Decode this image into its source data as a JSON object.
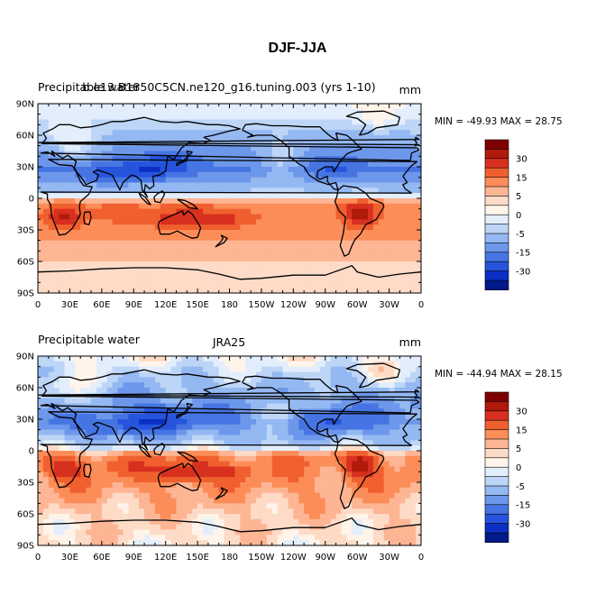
{
  "figure_title": "DJF-JJA",
  "panels": [
    {
      "left_label": "Precipitable water",
      "center_label": "b.e13.B1850C5CN.ne120_g16.tuning.003 (yrs 1-10)",
      "units": "mm",
      "stats": "MIN = -49.93 MAX =  28.75"
    },
    {
      "left_label": "Precipitable water",
      "center_label": "JRA25",
      "units": "mm",
      "stats": "MIN = -44.94 MAX =  28.15"
    }
  ],
  "lat_ticks": [
    "90N",
    "60N",
    "30N",
    "0",
    "30S",
    "60S",
    "90S"
  ],
  "lon_ticks": [
    "0",
    "30E",
    "60E",
    "90E",
    "120E",
    "150E",
    "180",
    "150W",
    "120W",
    "90W",
    "60W",
    "30W",
    "0"
  ],
  "colorbar": {
    "labels": [
      "30",
      "15",
      "5",
      "0",
      "-5",
      "-15",
      "-30"
    ],
    "colors": [
      "#7f0000",
      "#b01a0a",
      "#d7301f",
      "#f0602e",
      "#fc8d59",
      "#fdb594",
      "#fddbc7",
      "#fff4ea",
      "#e3eefc",
      "#bdd5f7",
      "#94b8f2",
      "#6d97ea",
      "#4675e3",
      "#2654dd",
      "#0b2fc4",
      "#001a8a"
    ]
  },
  "chart_data": {
    "type": "heatmap",
    "title": "DJF-JJA",
    "variable": "Precipitable water",
    "units": "mm",
    "x_axis": {
      "range": [
        0,
        360
      ],
      "ticks": [
        "0",
        "30E",
        "60E",
        "90E",
        "120E",
        "150E",
        "180",
        "150W",
        "120W",
        "90W",
        "60W",
        "30W",
        "0"
      ]
    },
    "y_axis": {
      "range": [
        -90,
        90
      ],
      "ticks": [
        "90N",
        "60N",
        "30N",
        "0",
        "30S",
        "60S",
        "90S"
      ]
    },
    "contour_levels": [
      -30,
      -15,
      -5,
      0,
      5,
      15,
      30
    ],
    "panels": [
      {
        "name": "b.e13.B1850C5CN.ne120_g16.tuning.003 (yrs 1-10)",
        "min": -49.93,
        "max": 28.75
      },
      {
        "name": "JRA25",
        "min": -44.94,
        "max": 28.15
      }
    ]
  }
}
